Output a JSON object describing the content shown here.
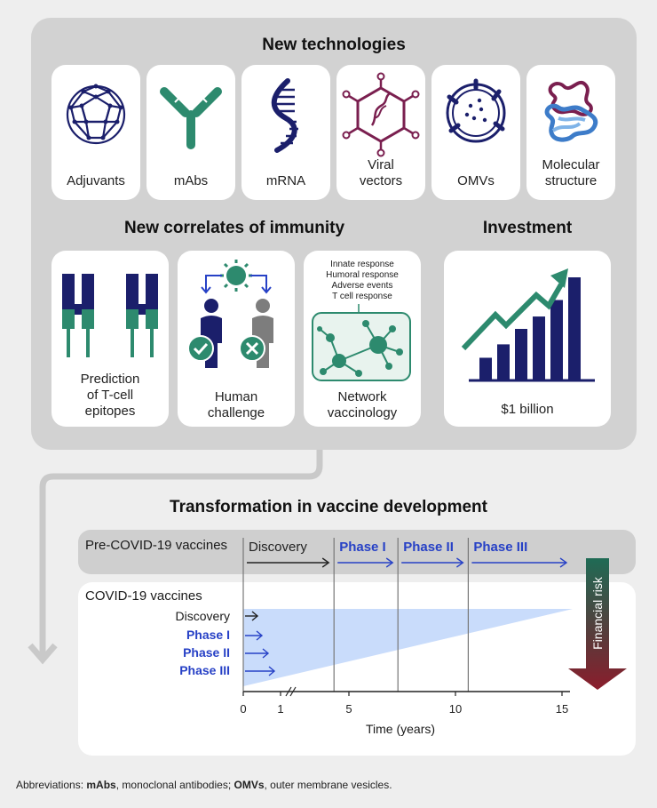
{
  "sections": {
    "new_technologies": "New technologies",
    "correlates": "New correlates of immunity",
    "investment": "Investment",
    "transformation": "Transformation in vaccine development"
  },
  "technologies": [
    {
      "label": "Adjuvants",
      "icon": "fullerene-icon"
    },
    {
      "label": "mAbs",
      "icon": "antibody-icon"
    },
    {
      "label": "mRNA",
      "icon": "rna-strand-icon"
    },
    {
      "label": "Viral\nvectors",
      "icon": "viral-vector-icon"
    },
    {
      "label": "OMVs",
      "icon": "vesicle-icon"
    },
    {
      "label": "Molecular\nstructure",
      "icon": "protein-structure-icon"
    }
  ],
  "correlates": [
    {
      "label": "Prediction\nof T-cell\nepitopes",
      "icon": "receptor-icon"
    },
    {
      "label": "Human\nchallenge",
      "icon": "human-challenge-icon"
    },
    {
      "label": "Network\nvaccinology",
      "icon": "network-icon"
    }
  ],
  "network_responses": [
    "Innate response",
    "Humoral response",
    "Adverse events",
    "T cell response"
  ],
  "investment": {
    "label": "$1 billion",
    "bars": [
      0.22,
      0.35,
      0.5,
      0.62,
      0.78,
      1.0
    ]
  },
  "timeline": {
    "pre_label": "Pre-COVID-19 vaccines",
    "covid_label": "COVID-19 vaccines",
    "pre_phases": [
      {
        "label": "Discovery",
        "start": 0,
        "end": 4.3
      },
      {
        "label": "Phase I",
        "start": 4.3,
        "end": 7.3
      },
      {
        "label": "Phase II",
        "start": 7.3,
        "end": 10.6
      },
      {
        "label": "Phase III",
        "start": 10.6,
        "end": 15.5
      }
    ],
    "covid_phases": [
      "Discovery",
      "Phase I",
      "Phase II",
      "Phase III"
    ],
    "x_ticks": [
      "0",
      "1",
      "5",
      "10",
      "15"
    ],
    "x_label": "Time (years)",
    "risk_label": "Financial risk"
  },
  "colors": {
    "navy": "#1b1f6b",
    "teal": "#2d8a6e",
    "blue": "#2741c6",
    "plum": "#7a1f4f",
    "red": "#8b1d2c",
    "shade": "#c9dcfb"
  },
  "abbreviations": {
    "t1": "Abbreviations: ",
    "k1": "mAbs",
    "d1": ", monoclonal antibodies; ",
    "k2": "OMVs",
    "d2": ", outer membrane vesicles."
  }
}
